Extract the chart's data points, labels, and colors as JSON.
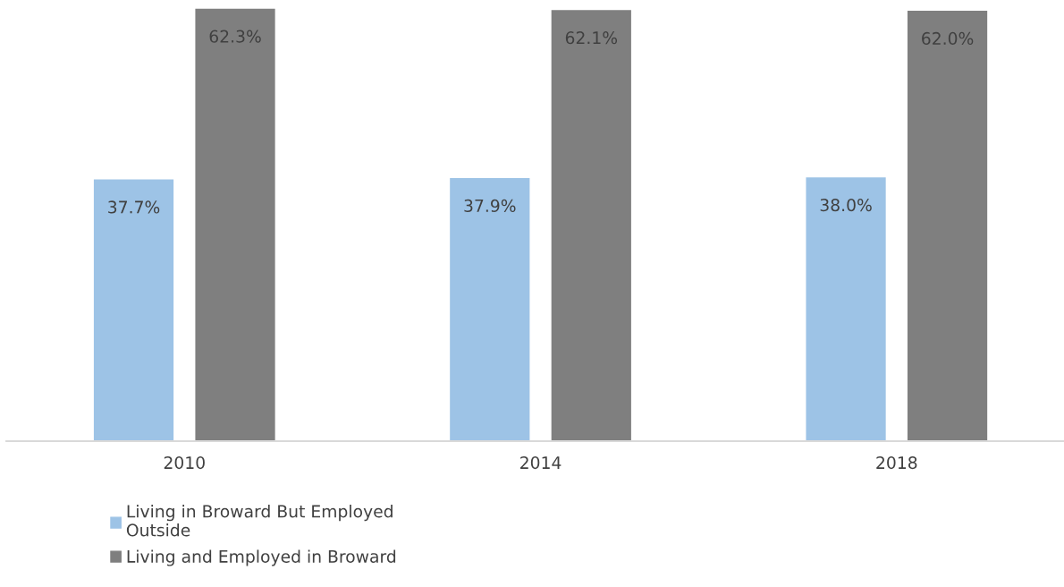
{
  "chart_data": {
    "type": "bar",
    "categories": [
      "2010",
      "2014",
      "2018"
    ],
    "series": [
      {
        "name": "Living in Broward But Employed\nOutside",
        "color": "#9dc3e6",
        "values": [
          37.7,
          37.9,
          38.0
        ],
        "value_labels": [
          "37.7%",
          "37.9%",
          "38.0%"
        ]
      },
      {
        "name": "Living and Employed in Broward",
        "color": "#7f7f7f",
        "values": [
          62.3,
          62.1,
          62.0
        ],
        "value_labels": [
          "62.3%",
          "62.1%",
          "62.0%"
        ]
      }
    ],
    "legend": "bottom left",
    "grid": false
  }
}
